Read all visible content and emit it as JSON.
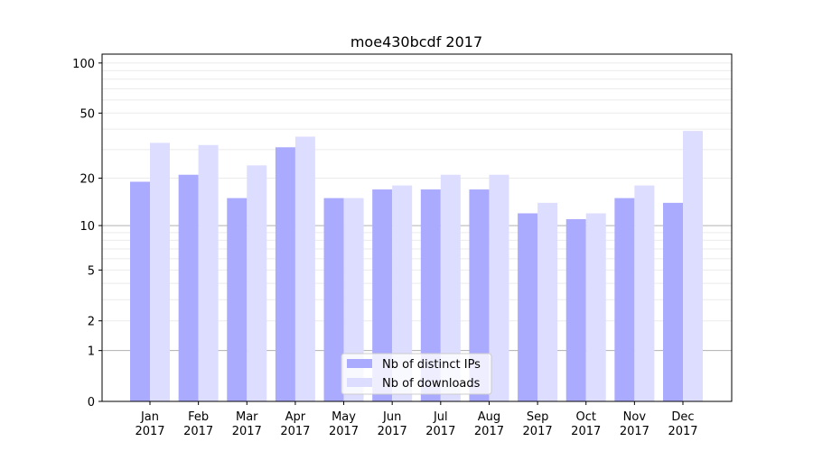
{
  "chart_data": {
    "type": "bar",
    "title": "moe430bcdf 2017",
    "xlabel": "",
    "ylabel": "",
    "yscale": "log10(1+y)",
    "ylim": [
      0,
      113
    ],
    "yticks": [
      0,
      1,
      2,
      5,
      10,
      20,
      50,
      100
    ],
    "ytick_labels": [
      "0",
      "1",
      "2",
      "5",
      "10",
      "20",
      "50",
      "100"
    ],
    "grid": true,
    "legend_position": "bottom-center",
    "categories": [
      "Jan\n2017",
      "Feb\n2017",
      "Mar\n2017",
      "Apr\n2017",
      "May\n2017",
      "Jun\n2017",
      "Jul\n2017",
      "Aug\n2017",
      "Sep\n2017",
      "Oct\n2017",
      "Nov\n2017",
      "Dec\n2017"
    ],
    "series": [
      {
        "name": "Nb of distinct IPs",
        "color": "#aaaaff",
        "values": [
          19,
          21,
          15,
          31,
          15,
          17,
          17,
          17,
          12,
          11,
          15,
          14
        ]
      },
      {
        "name": "Nb of downloads",
        "color": "#ddddff",
        "values": [
          33,
          32,
          24,
          36,
          15,
          18,
          21,
          21,
          14,
          12,
          18,
          39
        ]
      }
    ]
  }
}
